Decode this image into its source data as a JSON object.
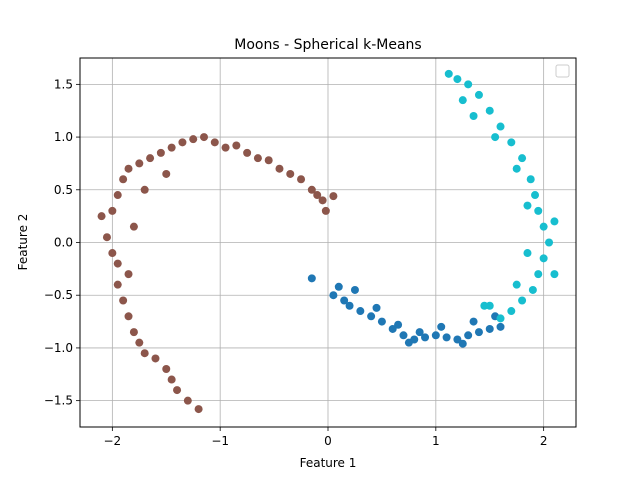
{
  "chart_data": {
    "type": "scatter",
    "title": "Moons - Spherical k-Means",
    "xlabel": "Feature 1",
    "ylabel": "Feature 2",
    "xlim": [
      -2.3,
      2.3
    ],
    "ylim": [
      -1.75,
      1.75
    ],
    "xticks": [
      -2,
      -1,
      0,
      1,
      2
    ],
    "xtick_labels": [
      "−2",
      "−1",
      "0",
      "1",
      "2"
    ],
    "yticks": [
      -1.5,
      -1.0,
      -0.5,
      0.0,
      0.5,
      1.0,
      1.5
    ],
    "ytick_labels": [
      "−1.5",
      "−1.0",
      "−0.5",
      "0.0",
      "0.5",
      "1.0",
      "1.5"
    ],
    "grid": true,
    "legend": "upper-right (empty)",
    "series": [
      {
        "color": "#8c564b",
        "points": [
          [
            -2.1,
            0.25
          ],
          [
            -2.05,
            0.05
          ],
          [
            -2.0,
            -0.1
          ],
          [
            -2.0,
            0.3
          ],
          [
            -1.95,
            0.45
          ],
          [
            -1.9,
            0.6
          ],
          [
            -1.85,
            0.7
          ],
          [
            -1.75,
            0.75
          ],
          [
            -1.65,
            0.8
          ],
          [
            -1.55,
            0.85
          ],
          [
            -1.45,
            0.9
          ],
          [
            -1.35,
            0.95
          ],
          [
            -1.25,
            0.98
          ],
          [
            -1.15,
            1.0
          ],
          [
            -1.05,
            0.95
          ],
          [
            -0.95,
            0.9
          ],
          [
            -0.85,
            0.92
          ],
          [
            -0.75,
            0.85
          ],
          [
            -0.65,
            0.8
          ],
          [
            -0.55,
            0.78
          ],
          [
            -0.45,
            0.7
          ],
          [
            -0.35,
            0.65
          ],
          [
            -0.25,
            0.6
          ],
          [
            -0.15,
            0.5
          ],
          [
            -0.1,
            0.45
          ],
          [
            -0.05,
            0.4
          ],
          [
            0.05,
            0.44
          ],
          [
            -0.02,
            0.3
          ],
          [
            -1.95,
            -0.2
          ],
          [
            -1.95,
            -0.4
          ],
          [
            -1.9,
            -0.55
          ],
          [
            -1.85,
            -0.7
          ],
          [
            -1.8,
            -0.85
          ],
          [
            -1.75,
            -0.95
          ],
          [
            -1.7,
            -1.05
          ],
          [
            -1.6,
            -1.1
          ],
          [
            -1.5,
            -1.2
          ],
          [
            -1.45,
            -1.3
          ],
          [
            -1.4,
            -1.4
          ],
          [
            -1.3,
            -1.5
          ],
          [
            -1.2,
            -1.58
          ],
          [
            -1.8,
            0.15
          ],
          [
            -1.85,
            -0.3
          ],
          [
            -1.7,
            0.5
          ],
          [
            -1.5,
            0.65
          ]
        ]
      },
      {
        "color": "#1f77b4",
        "points": [
          [
            -0.15,
            -0.34
          ],
          [
            0.05,
            -0.5
          ],
          [
            0.1,
            -0.42
          ],
          [
            0.15,
            -0.55
          ],
          [
            0.2,
            -0.6
          ],
          [
            0.3,
            -0.65
          ],
          [
            0.4,
            -0.7
          ],
          [
            0.5,
            -0.75
          ],
          [
            0.6,
            -0.82
          ],
          [
            0.7,
            -0.88
          ],
          [
            0.8,
            -0.92
          ],
          [
            0.9,
            -0.9
          ],
          [
            1.0,
            -0.88
          ],
          [
            1.1,
            -0.9
          ],
          [
            1.2,
            -0.92
          ],
          [
            1.3,
            -0.88
          ],
          [
            1.4,
            -0.85
          ],
          [
            1.5,
            -0.82
          ],
          [
            1.6,
            -0.8
          ],
          [
            0.25,
            -0.45
          ],
          [
            0.45,
            -0.62
          ],
          [
            0.65,
            -0.78
          ],
          [
            0.85,
            -0.85
          ],
          [
            1.05,
            -0.8
          ],
          [
            1.25,
            -0.96
          ],
          [
            1.35,
            -0.75
          ],
          [
            0.75,
            -0.95
          ],
          [
            1.55,
            -0.7
          ]
        ]
      },
      {
        "color": "#17becf",
        "points": [
          [
            1.12,
            1.6
          ],
          [
            1.2,
            1.55
          ],
          [
            1.3,
            1.5
          ],
          [
            1.4,
            1.4
          ],
          [
            1.5,
            1.25
          ],
          [
            1.6,
            1.1
          ],
          [
            1.7,
            0.95
          ],
          [
            1.8,
            0.8
          ],
          [
            1.88,
            0.6
          ],
          [
            1.92,
            0.45
          ],
          [
            1.95,
            0.3
          ],
          [
            2.0,
            0.15
          ],
          [
            2.05,
            0.0
          ],
          [
            2.0,
            -0.15
          ],
          [
            1.95,
            -0.3
          ],
          [
            1.9,
            -0.45
          ],
          [
            1.8,
            -0.55
          ],
          [
            1.7,
            -0.65
          ],
          [
            1.6,
            -0.72
          ],
          [
            1.5,
            -0.6
          ],
          [
            1.45,
            -0.6
          ],
          [
            1.25,
            1.35
          ],
          [
            1.35,
            1.2
          ],
          [
            1.55,
            1.0
          ],
          [
            1.75,
            0.7
          ],
          [
            1.85,
            0.35
          ],
          [
            1.85,
            -0.1
          ],
          [
            1.75,
            -0.4
          ],
          [
            2.1,
            -0.3
          ],
          [
            2.1,
            0.2
          ]
        ]
      }
    ]
  }
}
